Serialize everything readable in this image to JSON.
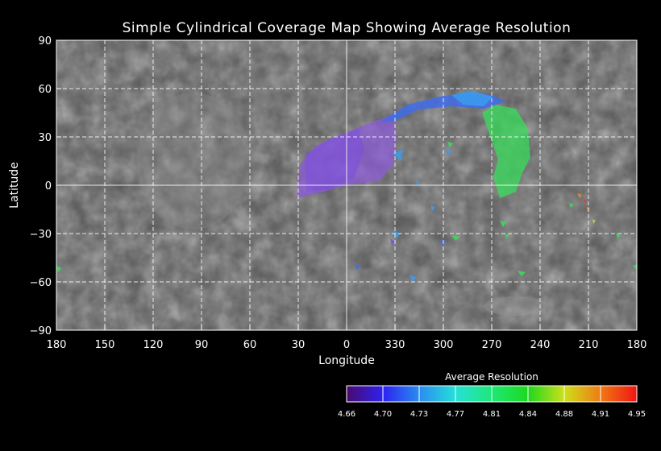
{
  "title": "Simple Cylindrical Coverage Map Showing Average Resolution",
  "x_axis": {
    "label": "Longitude",
    "ticks": [
      "180",
      "150",
      "120",
      "90",
      "60",
      "30",
      "0",
      "330",
      "300",
      "270",
      "240",
      "210",
      "180"
    ]
  },
  "y_axis": {
    "label": "Latitude",
    "ticks": [
      "90",
      "60",
      "30",
      "0",
      "−30",
      "−60",
      "−90"
    ]
  },
  "colorbar": {
    "title": "Average Resolution",
    "tick_labels": [
      "4.66",
      "4.70",
      "4.73",
      "4.77",
      "4.81",
      "4.84",
      "4.88",
      "4.91",
      "4.95"
    ],
    "colors": [
      "#4a0a6e",
      "#2d22f0",
      "#2a8cf0",
      "#26e0d8",
      "#1ee878",
      "#1ed81e",
      "#cde01a",
      "#f07a14",
      "#f01414"
    ]
  },
  "map": {
    "background": "#5a5a5a",
    "coverage_colors": {
      "purple": "#8a5ad8",
      "violet": "#7b4ee0",
      "blue": "#3f6cf0",
      "sky": "#3a9cf0",
      "green": "#34e05a",
      "lime": "#a8e030",
      "orange": "#e08a30",
      "red": "#e04030"
    }
  }
}
